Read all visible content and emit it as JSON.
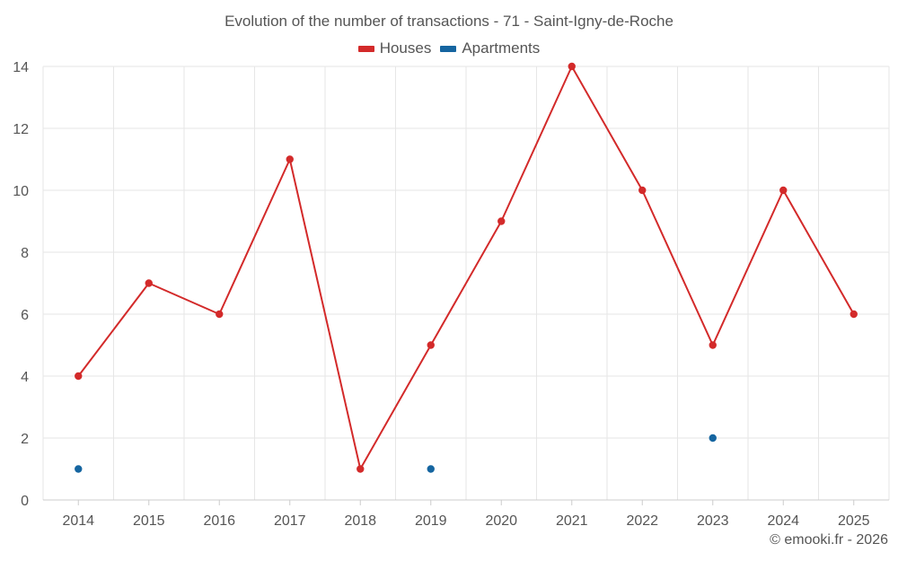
{
  "chart_data": {
    "type": "line",
    "title": "Evolution of the number of transactions - 71 - Saint-Igny-de-Roche",
    "categories": [
      "2014",
      "2015",
      "2016",
      "2017",
      "2018",
      "2019",
      "2020",
      "2021",
      "2022",
      "2023",
      "2024",
      "2025"
    ],
    "series": [
      {
        "name": "Houses",
        "color": "#d32a2a",
        "values": [
          4,
          7,
          6,
          11,
          1,
          5,
          9,
          14,
          10,
          5,
          10,
          6
        ]
      },
      {
        "name": "Apartments",
        "color": "#1565a0",
        "values": [
          1,
          null,
          null,
          null,
          null,
          1,
          null,
          null,
          null,
          2,
          null,
          null
        ]
      }
    ],
    "ylim": [
      0,
      14
    ],
    "yticks": [
      "0",
      "2",
      "4",
      "6",
      "8",
      "10",
      "12",
      "14"
    ],
    "xlabel": "",
    "ylabel": "",
    "grid": true,
    "legend_position": "top-center"
  },
  "footer": "© emooki.fr - 2026"
}
